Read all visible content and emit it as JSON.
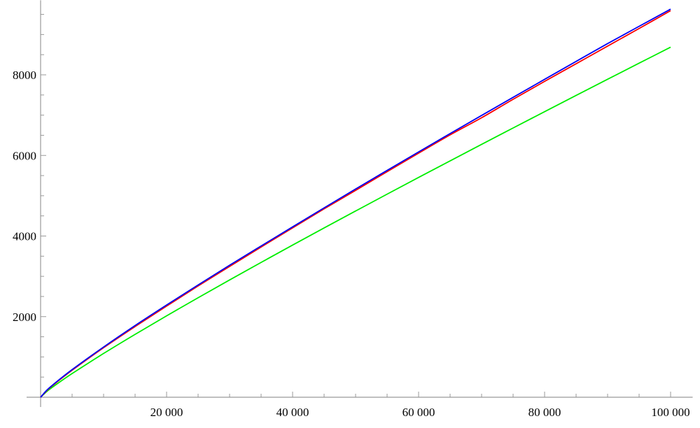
{
  "chart_data": {
    "type": "line",
    "title": "",
    "xlabel": "",
    "ylabel": "",
    "xlim": [
      0,
      103500
    ],
    "ylim": [
      0,
      9850
    ],
    "grid": false,
    "x_ticks": [
      20000,
      40000,
      60000,
      80000,
      100000
    ],
    "x_tick_labels": [
      "20 000",
      "40 000",
      "60 000",
      "80 000",
      "100 000"
    ],
    "x_minor_step": 5000,
    "y_ticks": [
      2000,
      4000,
      6000,
      8000
    ],
    "y_tick_labels": [
      "2000",
      "4000",
      "6000",
      "8000"
    ],
    "y_minor_step": 500,
    "x": [
      0,
      1000,
      2000,
      5000,
      10000,
      15000,
      20000,
      25000,
      30000,
      35000,
      40000,
      45000,
      50000,
      55000,
      60000,
      65000,
      70000,
      75000,
      80000,
      85000,
      90000,
      95000,
      100000
    ],
    "series": [
      {
        "color": "#0000ff",
        "values": [
          0,
          177,
          314,
          685,
          1246,
          1779,
          2288,
          2786,
          3275,
          3753,
          4227,
          4698,
          5167,
          5628,
          6087,
          6542,
          6992,
          7441,
          7888,
          8333,
          8775,
          9204,
          9630
        ]
      },
      {
        "color": "#ff0000",
        "values": [
          0,
          168,
          303,
          669,
          1229,
          1754,
          2262,
          2762,
          3245,
          3728,
          4203,
          4675,
          5133,
          5598,
          6057,
          6510,
          6935,
          7393,
          7837,
          8275,
          8713,
          9150,
          9592
        ]
      },
      {
        "color": "#00ee00",
        "values": [
          0,
          145,
          263,
          587,
          1086,
          1560,
          2020,
          2469,
          2910,
          3345,
          3775,
          4200,
          4621,
          5039,
          5454,
          5865,
          6275,
          6681,
          7086,
          7489,
          7890,
          8289,
          8686
        ]
      }
    ]
  }
}
